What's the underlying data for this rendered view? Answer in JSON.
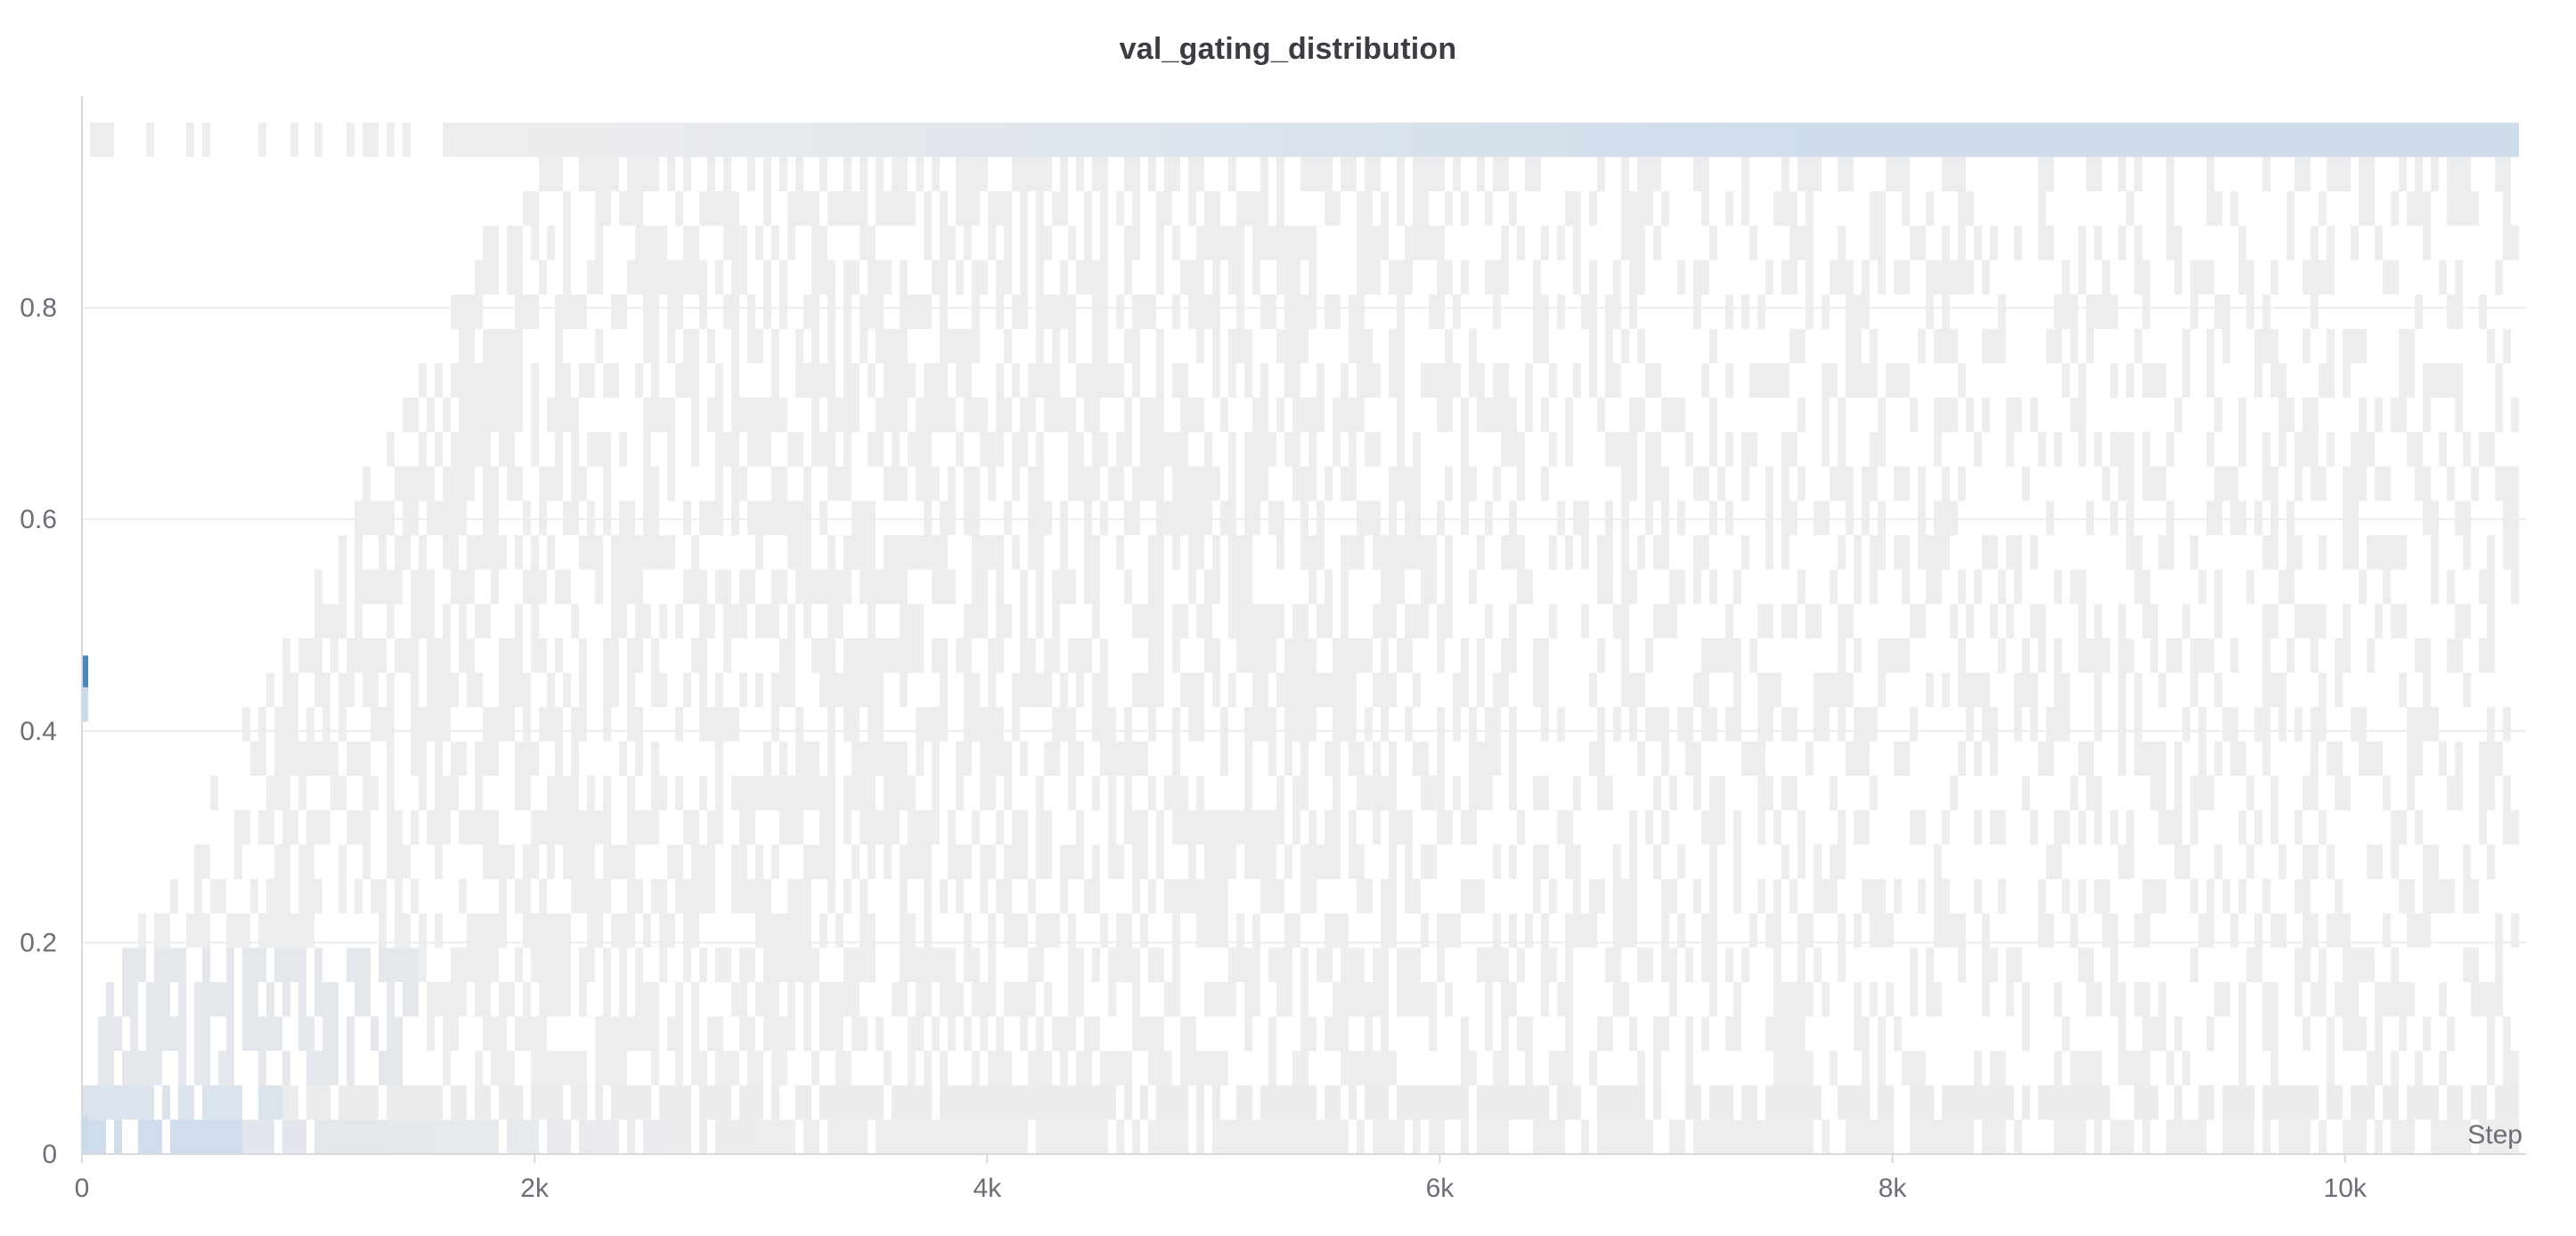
{
  "chart_data": {
    "type": "heatmap",
    "title": "val_gating_distribution",
    "xlabel": "Step",
    "ylabel": "",
    "xlim": [
      0,
      10800
    ],
    "ylim": [
      0,
      1
    ],
    "x_ticks": [
      0,
      2000,
      4000,
      6000,
      8000,
      10000
    ],
    "x_tick_labels": [
      "0",
      "2k",
      "4k",
      "6k",
      "8k",
      "10k"
    ],
    "y_ticks": [
      0,
      0.2,
      0.4,
      0.6,
      0.8
    ],
    "y_tick_labels": [
      "0",
      "0.2",
      "0.4",
      "0.6",
      "0.8"
    ],
    "bin_width": 0.0325,
    "grid": true,
    "colors": {
      "low": "#ededee",
      "mid": "#c8d9eb",
      "high": "#4a86c0",
      "axis": "#d7d9dd",
      "grid": "#ececee"
    },
    "step_0_distribution": [
      {
        "bin_center": 0.455,
        "density": "high"
      },
      {
        "bin_center": 0.425,
        "density": "mid"
      },
      {
        "bin_center": 0.02,
        "density": "mid"
      }
    ],
    "density_profile": [
      {
        "step_range": [
          0,
          800
        ],
        "mass_range": [
          0,
          0.1
        ],
        "note": "concentrated near 0"
      },
      {
        "step_range": [
          800,
          2000
        ],
        "mass_range": [
          0,
          0.95
        ],
        "note": "spreading upward"
      },
      {
        "step_range": [
          2000,
          10800
        ],
        "mass_range": [
          0.95,
          1.0
        ],
        "note": "concentrated near 1"
      }
    ]
  }
}
